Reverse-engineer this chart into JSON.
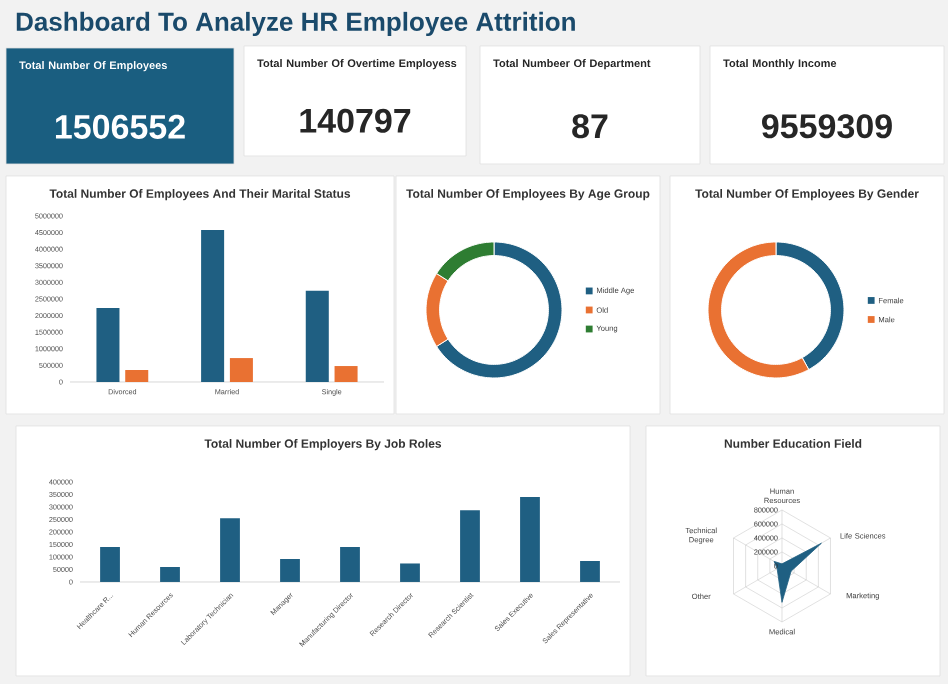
{
  "chart_data": [
    {
      "type": "other",
      "title": "Dashboard To Analyze HR Employee Attrition",
      "categories": [
        "Total Number Of Employees",
        "Total Number Of Overtime Employess",
        "Total Numbeer Of Department",
        "Total Monthly Income"
      ],
      "values": [
        1506552,
        140797,
        87,
        9559309
      ],
      "data_labels": true,
      "colors": [
        "#1a5e80",
        "#ffffff",
        "#ffffff",
        "#ffffff"
      ]
    },
    {
      "type": "bar",
      "title": "Total Number Of Employees And Their Marital Status",
      "categories": [
        "Divorced",
        "Married",
        "Single"
      ],
      "series": [
        {
          "color": "#1f5f82",
          "values": [
            2230000,
            4580000,
            2750000
          ]
        },
        {
          "color": "#e97132",
          "values": [
            360000,
            720000,
            480000
          ]
        }
      ],
      "ylim": [
        0,
        5000000
      ],
      "yticks": [
        0,
        500000,
        1000000,
        1500000,
        2000000,
        2500000,
        3000000,
        3500000,
        4000000,
        4500000,
        5000000
      ]
    },
    {
      "type": "donut",
      "title": "Total Number Of Employees By Age Group",
      "categories": [
        "Middle Age",
        "Old",
        "Young"
      ],
      "values": [
        66,
        18,
        16
      ],
      "colors": [
        "#1f5f82",
        "#e97132",
        "#2e7d32"
      ],
      "legend": "right"
    },
    {
      "type": "donut",
      "title": "Total Number Of Employees By Gender",
      "categories": [
        "Female",
        "Male"
      ],
      "values": [
        42,
        58
      ],
      "colors": [
        "#1f5f82",
        "#e97132"
      ],
      "legend": "right"
    },
    {
      "type": "bar",
      "title": "Total Number Of Employers By Job Roles",
      "categories": [
        "Healthcare R...",
        "Human Resources",
        "Laboratory Technician",
        "Manager",
        "Manufacturing Director",
        "Research Director",
        "Research Scientist",
        "Sales Executive",
        "Sales Representative"
      ],
      "values": [
        140000,
        60000,
        255000,
        92000,
        140000,
        74000,
        287000,
        340000,
        84000
      ],
      "color": "#1f5f82",
      "ylim": [
        0,
        400000
      ],
      "yticks": [
        0,
        50000,
        100000,
        150000,
        200000,
        250000,
        300000,
        350000,
        400000
      ]
    },
    {
      "type": "radar",
      "title": "Number Education Field",
      "categories": [
        "Human Resources",
        "Life Sciences",
        "Marketing",
        "Medical",
        "Other",
        "Technical Degree"
      ],
      "series": [
        {
          "color": "#1f5f82",
          "values": [
            30000,
            650000,
            150000,
            520000,
            80000,
            130000
          ]
        }
      ],
      "ylim": [
        0,
        800000
      ],
      "yticks": [
        0,
        200000,
        400000,
        600000,
        800000
      ]
    }
  ]
}
